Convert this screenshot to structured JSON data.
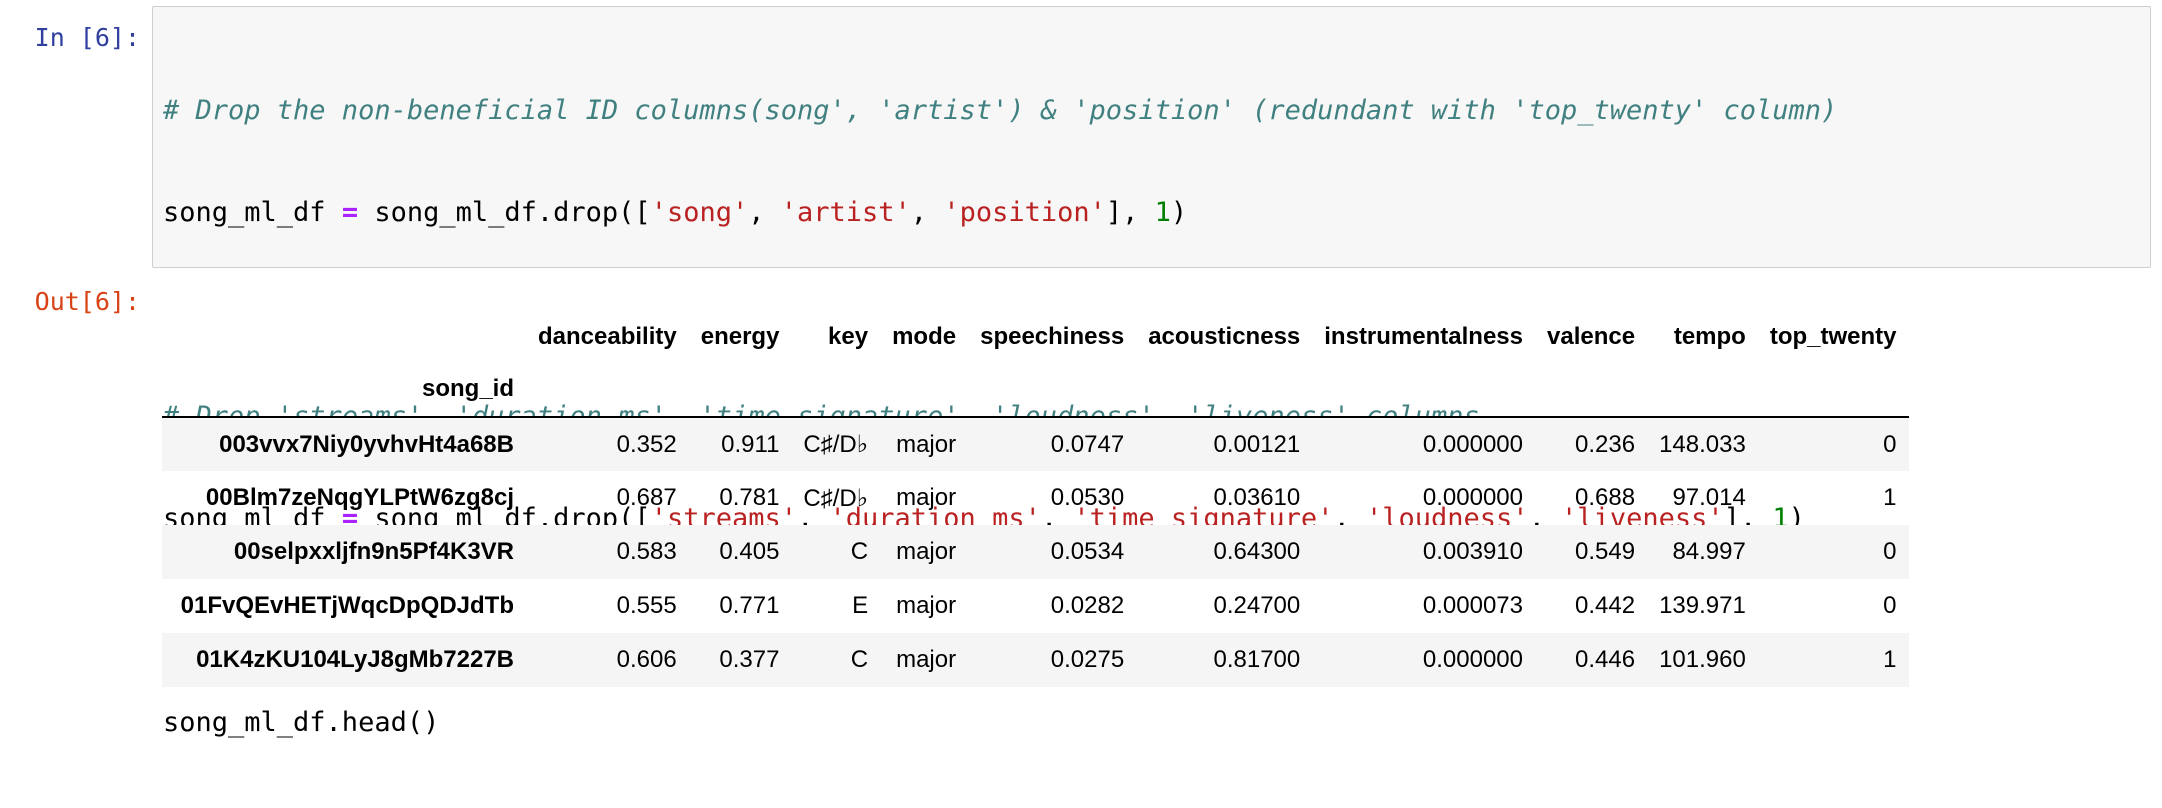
{
  "cell": {
    "in_prompt": "In [6]:",
    "out_prompt": "Out[6]:",
    "code": {
      "line1_comment": "# Drop the non-beneficial ID columns(song', 'artist') & 'position' (redundant with 'top_twenty' column)",
      "line2": {
        "a": "song_ml_df ",
        "op": "=",
        "b": " song_ml_df.drop([",
        "s1": "'song'",
        "sep1": ", ",
        "s2": "'artist'",
        "sep2": ", ",
        "s3": "'position'",
        "c": "], ",
        "n": "1",
        "d": ")"
      },
      "line4_comment": "# Drop 'streams', 'duration_ms', 'time_signature', 'loudness', 'liveness' columns",
      "line5": {
        "a": "song_ml_df ",
        "op": "=",
        "b": " song_ml_df.drop([",
        "s1": "'streams'",
        "sep1": ", ",
        "s2": "'duration_ms'",
        "sep2": ", ",
        "s3": "'time_signature'",
        "sep3": ", ",
        "s4": "'loudness'",
        "sep4": ", ",
        "s5": "'liveness'",
        "c": "], ",
        "n": "1",
        "d": ")"
      },
      "line7": "song_ml_df.head()"
    }
  },
  "table": {
    "columns": [
      "danceability",
      "energy",
      "key",
      "mode",
      "speechiness",
      "acousticness",
      "instrumentalness",
      "valence",
      "tempo",
      "top_twenty"
    ],
    "index_name": "song_id",
    "rows": [
      {
        "index": "003vvx7Niy0yvhvHt4a68B",
        "cells": [
          "0.352",
          "0.911",
          "C♯/D♭",
          "major",
          "0.0747",
          "0.00121",
          "0.000000",
          "0.236",
          "148.033",
          "0"
        ]
      },
      {
        "index": "00Blm7zeNqgYLPtW6zg8cj",
        "cells": [
          "0.687",
          "0.781",
          "C♯/D♭",
          "major",
          "0.0530",
          "0.03610",
          "0.000000",
          "0.688",
          "97.014",
          "1"
        ]
      },
      {
        "index": "00selpxxljfn9n5Pf4K3VR",
        "cells": [
          "0.583",
          "0.405",
          "C",
          "major",
          "0.0534",
          "0.64300",
          "0.003910",
          "0.549",
          "84.997",
          "0"
        ]
      },
      {
        "index": "01FvQEvHETjWqcDpQDJdTb",
        "cells": [
          "0.555",
          "0.771",
          "E",
          "major",
          "0.0282",
          "0.24700",
          "0.000073",
          "0.442",
          "139.971",
          "0"
        ]
      },
      {
        "index": "01K4zKU104LyJ8gMb7227B",
        "cells": [
          "0.606",
          "0.377",
          "C",
          "major",
          "0.0275",
          "0.81700",
          "0.000000",
          "0.446",
          "101.960",
          "1"
        ]
      }
    ]
  }
}
